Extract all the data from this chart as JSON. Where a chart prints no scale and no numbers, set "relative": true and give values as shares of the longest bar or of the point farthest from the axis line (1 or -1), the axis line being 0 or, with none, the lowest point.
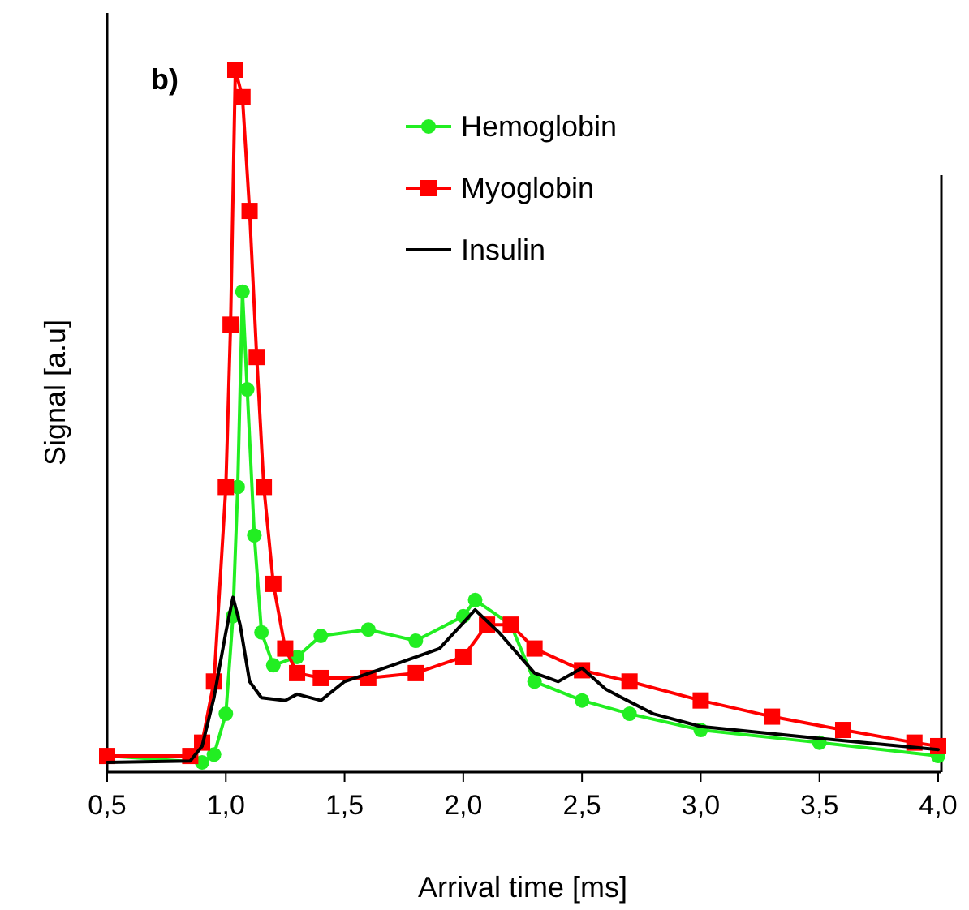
{
  "chart_data": {
    "type": "line",
    "relative": true,
    "xlabel": "Arrival time [ms]",
    "ylabel": "Signal [a.u]",
    "annotations": [
      "b)"
    ],
    "xlim": [
      0.5,
      4.0
    ],
    "xticks": [
      {
        "value": 0.5,
        "label": "0,5"
      },
      {
        "value": 1.0,
        "label": "1,0"
      },
      {
        "value": 1.5,
        "label": "1,5"
      },
      {
        "value": 2.0,
        "label": "2,0"
      },
      {
        "value": 2.5,
        "label": "2,5"
      },
      {
        "value": 3.0,
        "label": "3,0"
      },
      {
        "value": 3.5,
        "label": "3,5"
      },
      {
        "value": 4.0,
        "label": "4,0"
      }
    ],
    "tick_labels": "x",
    "legend": "top right",
    "series": [
      {
        "name": "Hemoglobin",
        "color": "#22ee22",
        "marker": "circle",
        "x": [
          0.5,
          0.9,
          0.95,
          1.0,
          1.03,
          1.05,
          1.07,
          1.09,
          1.12,
          1.15,
          1.2,
          1.3,
          1.4,
          1.6,
          1.8,
          2.0,
          2.05,
          2.2,
          2.3,
          2.5,
          2.7,
          3.0,
          3.5,
          4.0
        ],
        "values": [
          0.023,
          0.014,
          0.025,
          0.083,
          0.222,
          0.406,
          0.684,
          0.545,
          0.337,
          0.199,
          0.152,
          0.164,
          0.194,
          0.203,
          0.187,
          0.222,
          0.245,
          0.21,
          0.129,
          0.102,
          0.083,
          0.06,
          0.042,
          0.023
        ]
      },
      {
        "name": "Myoglobin",
        "color": "#ff0000",
        "marker": "square",
        "x": [
          0.5,
          0.85,
          0.9,
          0.95,
          1.0,
          1.02,
          1.04,
          1.07,
          1.1,
          1.13,
          1.16,
          1.2,
          1.25,
          1.3,
          1.4,
          1.6,
          1.8,
          2.0,
          2.1,
          2.2,
          2.3,
          2.5,
          2.7,
          3.0,
          3.3,
          3.6,
          3.9,
          4.0
        ],
        "values": [
          0.023,
          0.023,
          0.042,
          0.129,
          0.406,
          0.637,
          1,
          0.961,
          0.799,
          0.591,
          0.406,
          0.268,
          0.176,
          0.141,
          0.134,
          0.134,
          0.141,
          0.164,
          0.21,
          0.21,
          0.176,
          0.145,
          0.129,
          0.102,
          0.079,
          0.06,
          0.042,
          0.037
        ]
      },
      {
        "name": "Insulin",
        "color": "#000000",
        "marker": "none",
        "x": [
          0.5,
          0.85,
          0.9,
          0.95,
          1.0,
          1.03,
          1.06,
          1.1,
          1.15,
          1.25,
          1.3,
          1.4,
          1.5,
          1.7,
          1.9,
          2.05,
          2.15,
          2.3,
          2.4,
          2.5,
          2.6,
          2.8,
          3.0,
          3.5,
          4.0
        ],
        "values": [
          0.014,
          0.016,
          0.037,
          0.106,
          0.199,
          0.249,
          0.21,
          0.129,
          0.106,
          0.102,
          0.111,
          0.102,
          0.129,
          0.152,
          0.176,
          0.231,
          0.199,
          0.141,
          0.129,
          0.148,
          0.118,
          0.083,
          0.065,
          0.048,
          0.032
        ]
      }
    ]
  }
}
